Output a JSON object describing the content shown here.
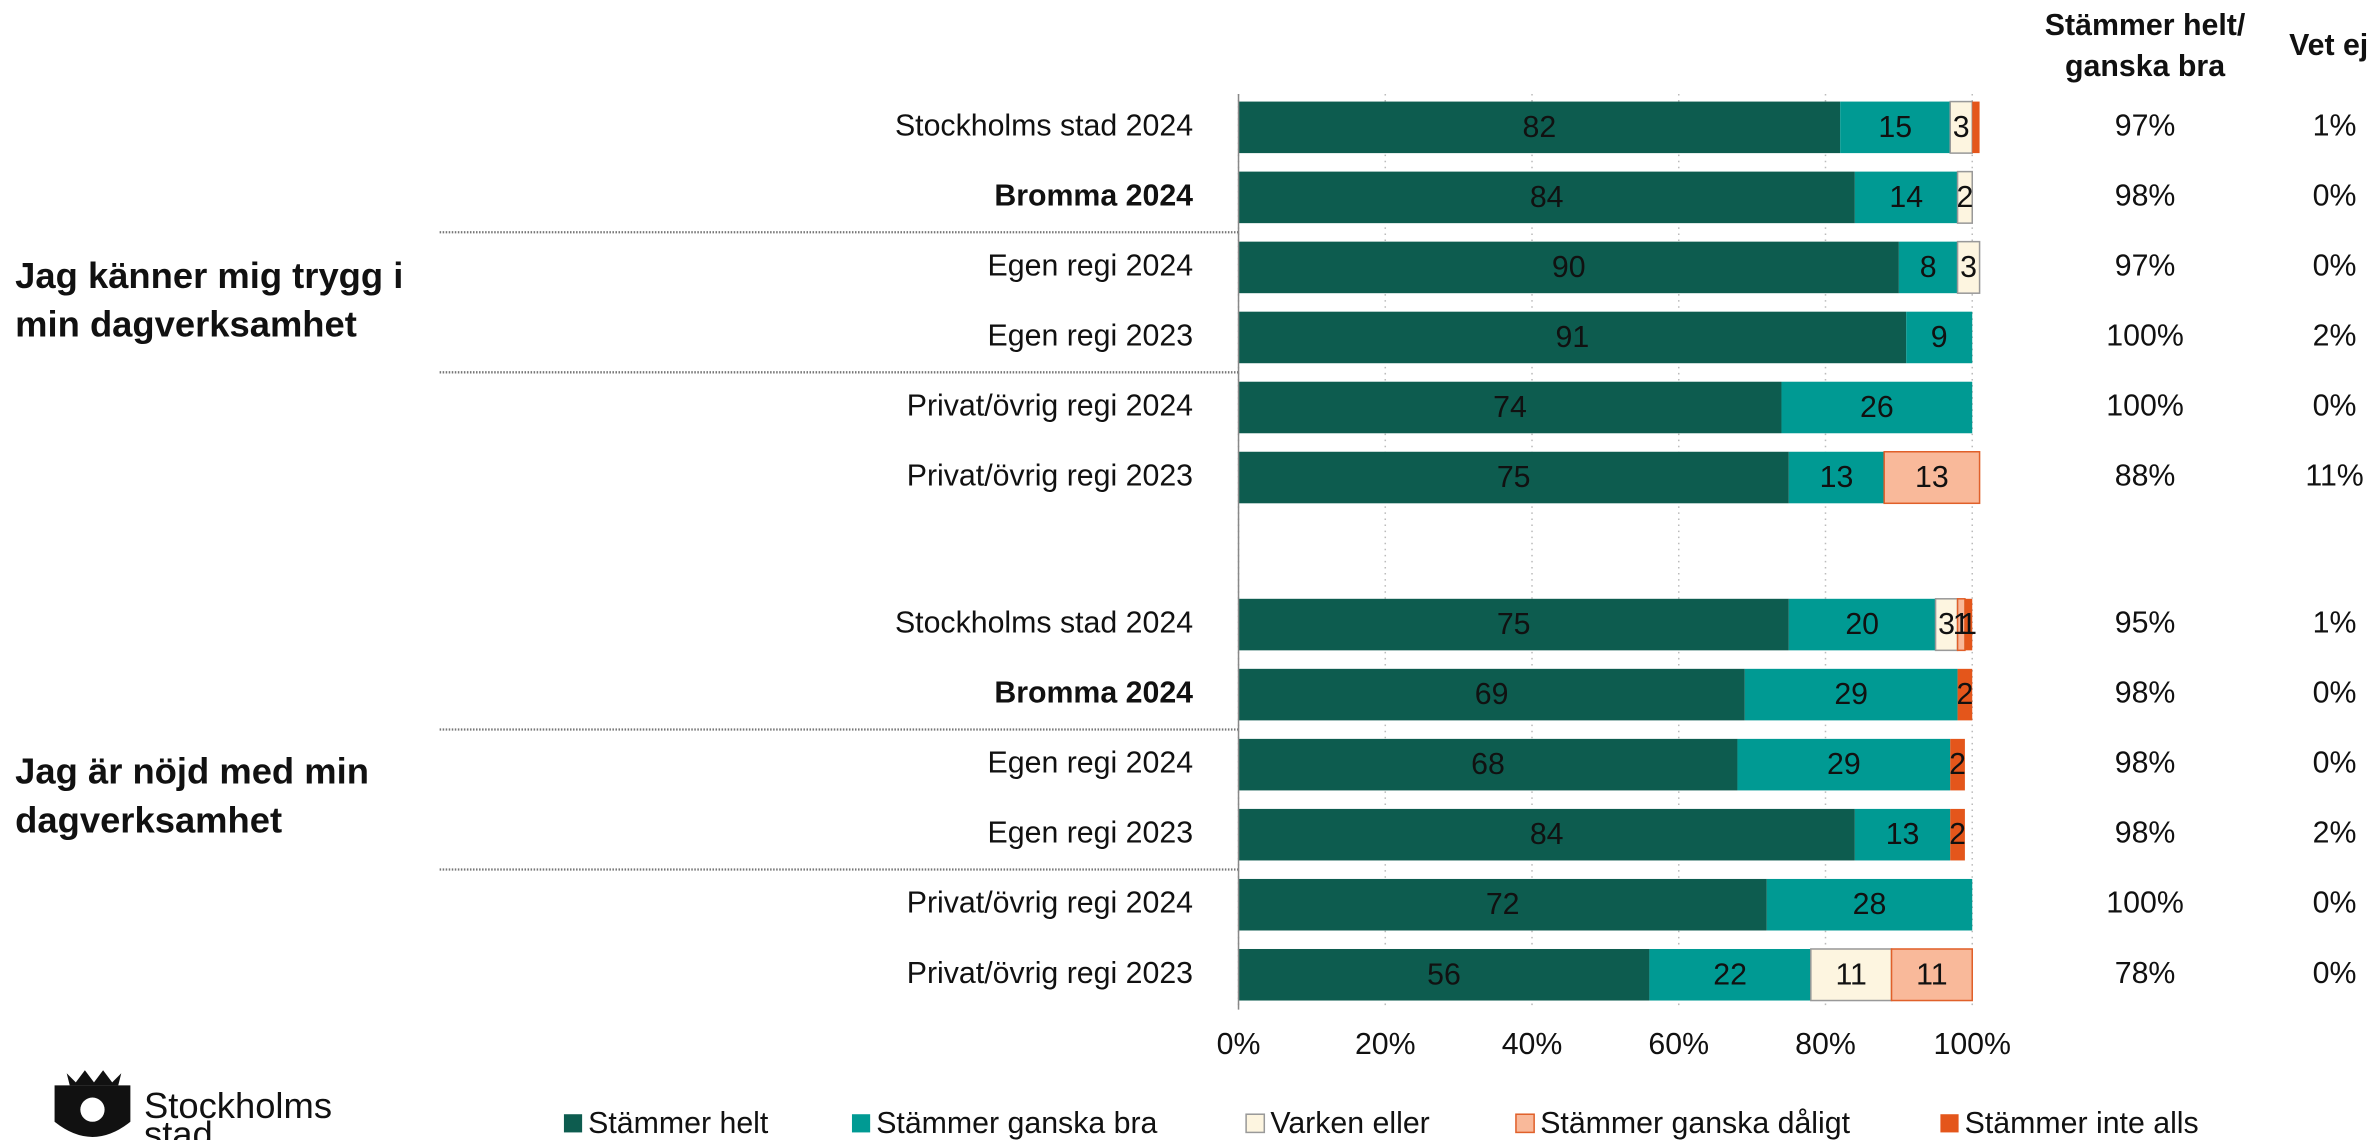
{
  "chart_data": {
    "type": "stacked_barh",
    "categories": [
      "Stockholms stad 2024",
      "Bromma 2024",
      "Egen regi 2024",
      "Egen regi 2023",
      "Privat/övrig regi 2024",
      "Privat/övrig regi 2023",
      "Stockholms stad 2024",
      "Bromma 2024",
      "Egen regi 2024",
      "Egen regi 2023",
      "Privat/övrig regi 2024",
      "Privat/övrig regi 2023"
    ],
    "emphasis": [
      1,
      7
    ],
    "groups": [
      "Jag känner mig trygg i min dagverksamhet",
      "Jag är nöjd med min dagverksamhet"
    ],
    "series": [
      {
        "name": "Stämmer helt",
        "color": "#0d5c4f",
        "values": [
          82,
          84,
          90,
          91,
          74,
          75,
          75,
          69,
          68,
          84,
          72,
          56
        ]
      },
      {
        "name": "Stämmer ganska bra",
        "color": "#009a93",
        "values": [
          15,
          14,
          8,
          9,
          26,
          13,
          20,
          29,
          29,
          13,
          28,
          22
        ]
      },
      {
        "name": "Varken eller",
        "color": "#fdf5e0",
        "stroke": "#999999",
        "values": [
          3,
          2,
          3,
          null,
          null,
          null,
          3,
          null,
          null,
          null,
          null,
          11
        ]
      },
      {
        "name": "Stämmer ganska dåligt",
        "color": "#f9b99a",
        "stroke": "#e0602a",
        "values": [
          null,
          null,
          null,
          null,
          null,
          13,
          1,
          null,
          null,
          null,
          null,
          11
        ]
      },
      {
        "name": "Stämmer inte alls",
        "color": "#e4561b",
        "values": [
          1,
          null,
          null,
          null,
          null,
          null,
          1,
          2,
          2,
          2,
          null,
          null
        ],
        "value_labels": [
          null,
          null,
          null,
          null,
          null,
          null,
          "1",
          "2",
          "2",
          "2",
          null,
          null
        ]
      }
    ],
    "xlim": [
      0,
      100
    ],
    "xticks": [
      {
        "value": 0,
        "label": "0%"
      },
      {
        "value": 20,
        "label": "20%"
      },
      {
        "value": 40,
        "label": "40%"
      },
      {
        "value": 60,
        "label": "60%"
      },
      {
        "value": 80,
        "label": "80%"
      },
      {
        "value": 100,
        "label": "100%"
      }
    ],
    "grid": true,
    "table": {
      "headers": [
        "Stämmer helt/ ganska bra",
        "Vet ej"
      ],
      "rows": [
        [
          "97%",
          "1%"
        ],
        [
          "98%",
          "0%"
        ],
        [
          "97%",
          "0%"
        ],
        [
          "100%",
          "2%"
        ],
        [
          "100%",
          "0%"
        ],
        [
          "88%",
          "11%"
        ],
        [
          "95%",
          "1%"
        ],
        [
          "98%",
          "0%"
        ],
        [
          "98%",
          "0%"
        ],
        [
          "98%",
          "2%"
        ],
        [
          "100%",
          "0%"
        ],
        [
          "78%",
          "0%"
        ]
      ]
    },
    "logo": [
      "Stockholms",
      "stad"
    ]
  }
}
